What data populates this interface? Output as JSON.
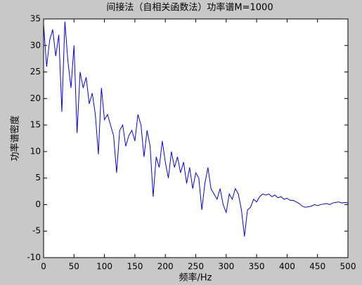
{
  "chart_data": {
    "type": "line",
    "title": "间接法（自相关函数法）功率谱M=1000",
    "x_label": "频率/Hz",
    "y_label": "功率谱密度",
    "x": [
      0,
      5,
      10,
      15,
      20,
      25,
      30,
      35,
      40,
      45,
      50,
      55,
      60,
      65,
      70,
      75,
      80,
      85,
      90,
      95,
      100,
      105,
      110,
      115,
      120,
      125,
      130,
      135,
      140,
      145,
      150,
      155,
      160,
      165,
      170,
      175,
      180,
      185,
      190,
      195,
      200,
      205,
      210,
      215,
      220,
      225,
      230,
      235,
      240,
      245,
      250,
      255,
      260,
      265,
      270,
      275,
      280,
      285,
      290,
      295,
      300,
      305,
      310,
      315,
      320,
      325,
      330,
      335,
      340,
      345,
      350,
      355,
      360,
      365,
      370,
      375,
      380,
      385,
      390,
      395,
      400,
      405,
      410,
      415,
      420,
      425,
      430,
      435,
      440,
      445,
      450,
      455,
      460,
      465,
      470,
      475,
      480,
      485,
      490,
      495,
      500
    ],
    "series": [
      {
        "name": "功率谱",
        "color": "#0000ff",
        "values": [
          34,
          26,
          31,
          33,
          28,
          32,
          17.5,
          34.5,
          27,
          22,
          30,
          13.5,
          25,
          22,
          24,
          19,
          21,
          17,
          9.5,
          22,
          16,
          17,
          15,
          13,
          6,
          14,
          15,
          11,
          13,
          14,
          12,
          17,
          15,
          9,
          14,
          11,
          1.5,
          9,
          7,
          12,
          8,
          5,
          10,
          7,
          9,
          6,
          8,
          4,
          7,
          3,
          6,
          5,
          -1,
          4,
          7,
          3,
          2,
          1,
          3,
          0,
          -1.5,
          2,
          1,
          3,
          2,
          -1,
          -6,
          -1,
          -0.5,
          1,
          0.5,
          1.5,
          2,
          1.8,
          2,
          1.5,
          1.8,
          1.3,
          1.5,
          1,
          1.2,
          0.8,
          0.8,
          0.5,
          0.2,
          -0.3,
          -0.5,
          -0.4,
          -0.3,
          0,
          -0.2,
          0,
          0.1,
          0.2,
          0,
          0.3,
          0.4,
          0.5,
          0.3,
          0.4,
          0.3
        ]
      }
    ],
    "xlim": [
      0,
      500
    ],
    "xticks": [
      0,
      50,
      100,
      150,
      200,
      250,
      300,
      350,
      400,
      450,
      500
    ],
    "ylim": [
      -10,
      35
    ],
    "yticks": [
      -10,
      -5,
      0,
      5,
      10,
      15,
      20,
      25,
      30,
      35
    ],
    "grid": false
  }
}
